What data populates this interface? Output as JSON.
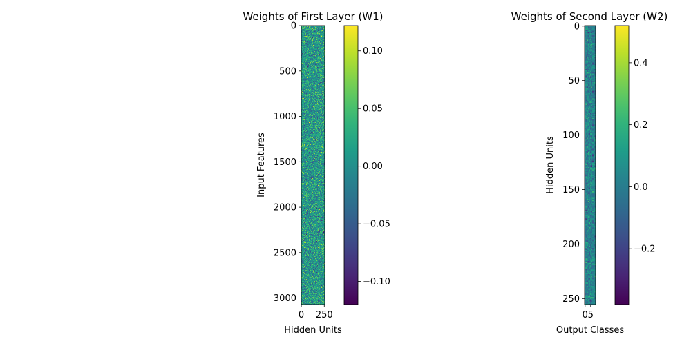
{
  "chart_data": [
    {
      "type": "heatmap",
      "title": "Weights of First Layer (W1)",
      "xlabel": "Hidden Units",
      "ylabel": "Input Features",
      "rows": 3072,
      "cols": 256,
      "xticks": [
        {
          "value": 0,
          "label": "0"
        },
        {
          "value": 250,
          "label": "250"
        }
      ],
      "yticks": [
        {
          "value": 0,
          "label": "0"
        },
        {
          "value": 500,
          "label": "500"
        },
        {
          "value": 1000,
          "label": "1000"
        },
        {
          "value": 1500,
          "label": "1500"
        },
        {
          "value": 2000,
          "label": "2000"
        },
        {
          "value": 2500,
          "label": "2500"
        },
        {
          "value": 3000,
          "label": "3000"
        }
      ],
      "colorbar": {
        "colormap": "viridis",
        "range": [
          -0.12,
          0.122
        ],
        "ticks": [
          {
            "value": 0.1,
            "label": "0.10"
          },
          {
            "value": 0.05,
            "label": "0.05"
          },
          {
            "value": 0.0,
            "label": "0.00"
          },
          {
            "value": -0.05,
            "label": "−0.05"
          },
          {
            "value": -0.1,
            "label": "−0.10"
          }
        ]
      },
      "value_distribution": {
        "mean": 0.01,
        "std": 0.03
      }
    },
    {
      "type": "heatmap",
      "title": "Weights of Second Layer (W2)",
      "xlabel": "Output Classes",
      "ylabel": "Hidden Units",
      "rows": 256,
      "cols": 10,
      "xticks": [
        {
          "value": 0,
          "label": "0"
        },
        {
          "value": 5,
          "label": "5"
        }
      ],
      "yticks": [
        {
          "value": 0,
          "label": "0"
        },
        {
          "value": 50,
          "label": "50"
        },
        {
          "value": 100,
          "label": "100"
        },
        {
          "value": 150,
          "label": "150"
        },
        {
          "value": 200,
          "label": "200"
        },
        {
          "value": 250,
          "label": "250"
        }
      ],
      "colorbar": {
        "colormap": "viridis",
        "range": [
          -0.38,
          0.52
        ],
        "ticks": [
          {
            "value": 0.4,
            "label": "0.4"
          },
          {
            "value": 0.2,
            "label": "0.2"
          },
          {
            "value": 0.0,
            "label": "0.0"
          },
          {
            "value": -0.2,
            "label": "−0.2"
          }
        ]
      },
      "value_distribution": {
        "mean": 0.02,
        "std": 0.08
      }
    }
  ]
}
